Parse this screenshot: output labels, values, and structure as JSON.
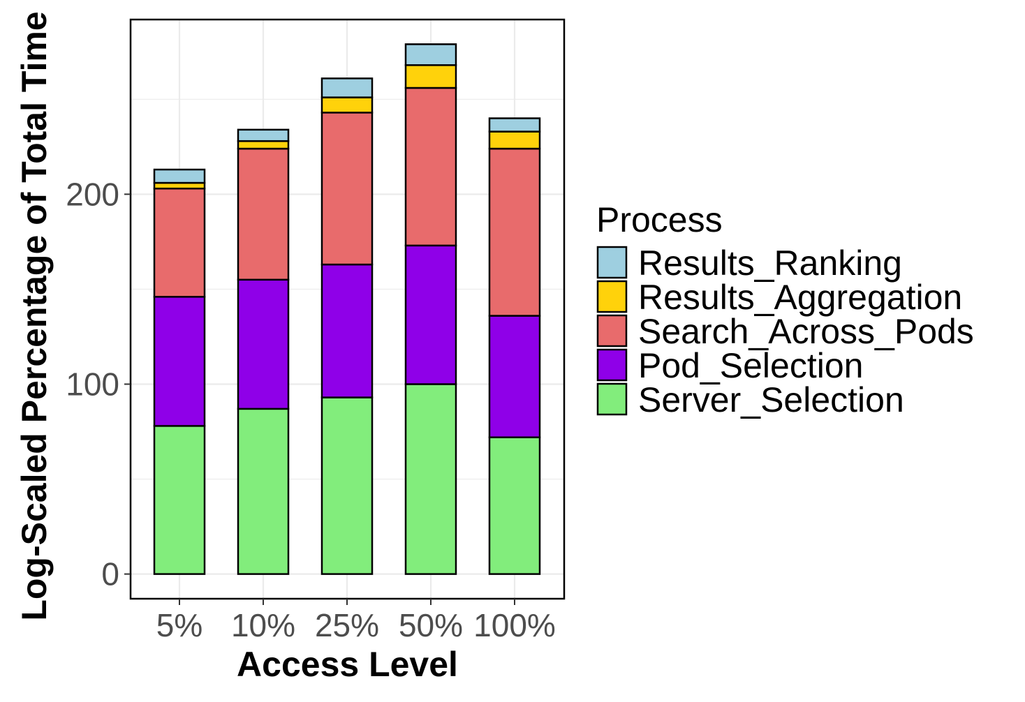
{
  "chart_data": {
    "type": "bar",
    "stacked": true,
    "xlabel": "Access Level",
    "ylabel": "Log-Scaled Percentage of Total Time",
    "categories": [
      "5%",
      "10%",
      "25%",
      "50%",
      "100%"
    ],
    "ylim": [
      -13,
      292
    ],
    "yticks": [
      0,
      100,
      200
    ],
    "grid": true,
    "legend_title": "Process",
    "legend_position": "right",
    "series": [
      {
        "name": "Server_Selection",
        "color": "#82ED7C",
        "values": [
          78,
          87,
          93,
          100,
          72
        ]
      },
      {
        "name": "Pod_Selection",
        "color": "#8F00E8",
        "values": [
          68,
          68,
          70,
          73,
          64
        ]
      },
      {
        "name": "Search_Across_Pods",
        "color": "#E86B6C",
        "values": [
          57,
          69,
          80,
          83,
          88
        ]
      },
      {
        "name": "Results_Aggregation",
        "color": "#FFD20B",
        "values": [
          3,
          4,
          8,
          12,
          9
        ]
      },
      {
        "name": "Results_Ranking",
        "color": "#9ECFE0",
        "values": [
          7,
          6,
          10,
          11,
          7
        ]
      }
    ],
    "legend_order": [
      "Results_Ranking",
      "Results_Aggregation",
      "Search_Across_Pods",
      "Pod_Selection",
      "Server_Selection"
    ]
  }
}
